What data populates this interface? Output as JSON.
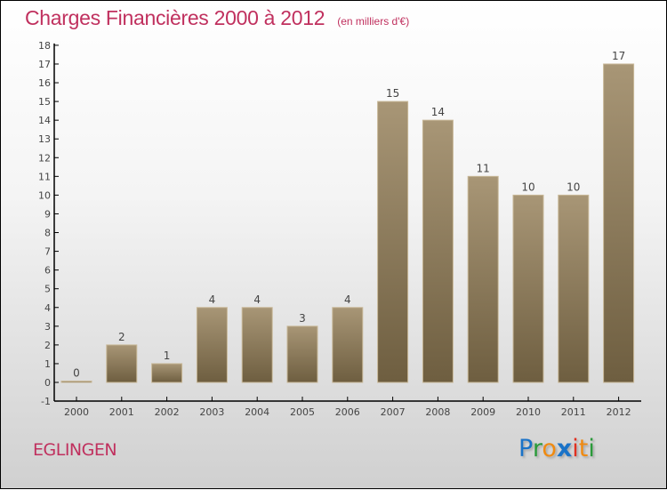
{
  "title": "Charges Financières 2000 à 2012",
  "subtitle": "(en milliers d'€)",
  "city": "EGLINGEN",
  "logo": {
    "text": "Proxiti",
    "letters": [
      "P",
      "r",
      "o",
      "x",
      "i",
      "t",
      "i"
    ],
    "colors": [
      "#1a73c8",
      "#2a9a3a",
      "#f08a10",
      "#1a73c8",
      "#e03020",
      "#f08a10",
      "#2a9a3a"
    ]
  },
  "chart_data": {
    "type": "bar",
    "title": "Charges Financières 2000 à 2012",
    "ylabel": "(en milliers d'€)",
    "categories": [
      "2000",
      "2001",
      "2002",
      "2003",
      "2004",
      "2005",
      "2006",
      "2007",
      "2008",
      "2009",
      "2010",
      "2011",
      "2012"
    ],
    "values": [
      0,
      2,
      1,
      4,
      4,
      3,
      4,
      15,
      14,
      11,
      10,
      10,
      17
    ],
    "ylim": [
      -1,
      18
    ],
    "yticks": [
      -1,
      0,
      1,
      2,
      3,
      4,
      5,
      6,
      7,
      8,
      9,
      10,
      11,
      12,
      13,
      14,
      15,
      16,
      17,
      18
    ],
    "bar_color_top": "#a89676",
    "bar_color_bottom": "#6e5e40"
  }
}
